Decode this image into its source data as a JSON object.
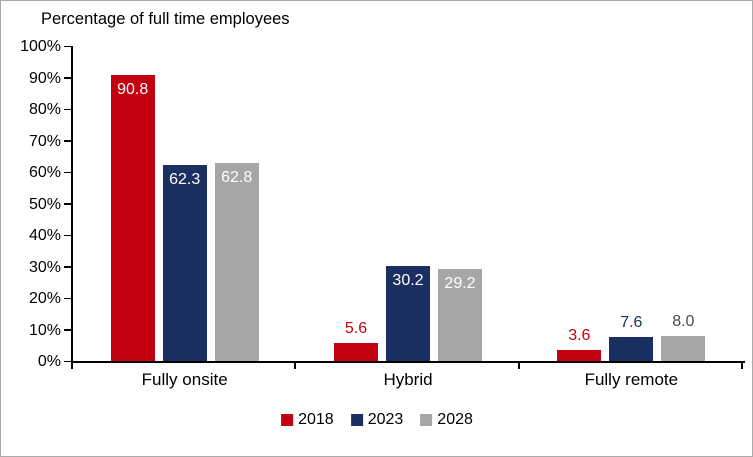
{
  "frame": {
    "background": "#ffffff",
    "border_color": "#a9a9a9"
  },
  "chart_data": {
    "type": "bar",
    "title": "Percentage of full time employees",
    "xlabel": "",
    "ylabel": "",
    "categories": [
      "Fully onsite",
      "Hybrid",
      "Fully remote"
    ],
    "series": [
      {
        "name": "2018",
        "color": "#c3000f",
        "values": [
          90.8,
          5.6,
          3.6
        ],
        "value_labels": [
          "90.8",
          "5.6",
          "3.6"
        ],
        "outside_label_color": "#c3000f"
      },
      {
        "name": "2023",
        "color": "#1b3061",
        "values": [
          62.3,
          30.2,
          7.6
        ],
        "value_labels": [
          "62.3",
          "30.2",
          "7.6"
        ],
        "outside_label_color": "#1b3061"
      },
      {
        "name": "2028",
        "color": "#a6a6a6",
        "values": [
          62.8,
          29.2,
          8.0
        ],
        "value_labels": [
          "62.8",
          "29.2",
          "8.0"
        ],
        "outside_label_color": "#4a4a4a"
      }
    ],
    "ylim": [
      0,
      100
    ],
    "ytick_labels": [
      "100%",
      "90%",
      "80%",
      "70%",
      "60%",
      "50%",
      "40%",
      "30%",
      "20%",
      "10%",
      "0%"
    ],
    "grid": false,
    "legend_position": "bottom",
    "inside_label_color": "#ffffff",
    "inside_label_threshold": 15,
    "axis_color": "#000000",
    "text_color": "#000000"
  }
}
